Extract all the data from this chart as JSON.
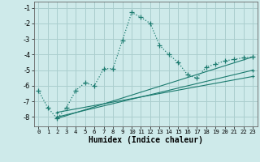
{
  "xlabel": "Humidex (Indice chaleur)",
  "background_color": "#ceeaea",
  "line_color": "#1a7a6e",
  "grid_color": "#aacece",
  "xlim": [
    -0.5,
    23.5
  ],
  "ylim": [
    -8.6,
    -0.6
  ],
  "yticks": [
    -8,
    -7,
    -6,
    -5,
    -4,
    -3,
    -2,
    -1
  ],
  "xticks": [
    0,
    1,
    2,
    3,
    4,
    5,
    6,
    7,
    8,
    9,
    10,
    11,
    12,
    13,
    14,
    15,
    16,
    17,
    18,
    19,
    20,
    21,
    22,
    23
  ],
  "curve1_x": [
    0,
    1,
    2,
    3,
    4,
    5,
    6,
    7,
    8,
    9,
    10,
    11,
    12,
    13,
    14,
    15,
    16,
    17,
    18,
    19,
    20,
    21,
    22,
    23
  ],
  "curve1_y": [
    -6.3,
    -7.4,
    -8.1,
    -7.4,
    -6.3,
    -5.8,
    -6.0,
    -4.9,
    -4.9,
    -3.1,
    -1.3,
    -1.6,
    -2.0,
    -3.4,
    -4.0,
    -4.5,
    -5.3,
    -5.5,
    -4.8,
    -4.6,
    -4.4,
    -4.3,
    -4.2,
    -4.15
  ],
  "line2_x": [
    2,
    23
  ],
  "line2_y": [
    -8.1,
    -4.15
  ],
  "line3_x": [
    2,
    23
  ],
  "line3_y": [
    -8.0,
    -5.0
  ],
  "line4_x": [
    2,
    23
  ],
  "line4_y": [
    -7.7,
    -5.4
  ]
}
